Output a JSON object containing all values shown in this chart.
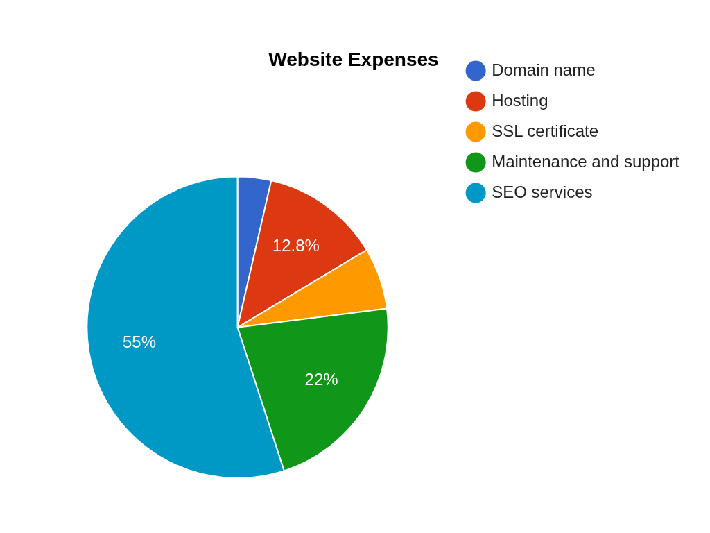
{
  "chart_data": {
    "type": "pie",
    "title": "Website Expenses",
    "categories": [
      "Domain name",
      "Hosting",
      "SSL certificate",
      "Maintenance and support",
      "SEO services"
    ],
    "values": [
      3.6,
      12.8,
      6.6,
      22,
      55
    ],
    "colors": [
      "#3366cc",
      "#dc3912",
      "#ff9900",
      "#109618",
      "#0099c6"
    ],
    "value_labels": [
      null,
      "12.8%",
      null,
      "22%",
      "55%"
    ],
    "legend": "right"
  }
}
